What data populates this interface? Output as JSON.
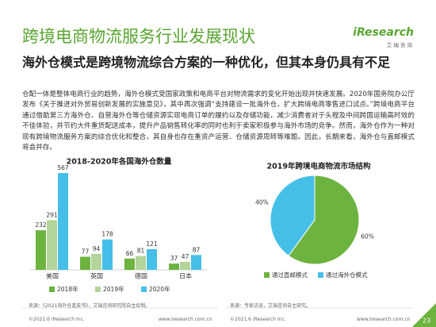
{
  "header": {
    "title": "跨境电商物流服务行业发展现状",
    "logo": "iResearch",
    "logo_sub": "艾 瑞 咨 询"
  },
  "subtitle": "海外仓模式是跨境物流综合方案的一种优化，但其本身仍具有不足",
  "body": "仓配一体是整体电商行业的趋势，海外仓模式受国家政策和电商平台对物流需求的变化开始出现并快速发展。2020年国务院办公厅发布《关于推进对外贸易创新发展的实施意见》，其中再次强调“支持建设一批海外仓，扩大跨境电商零售进口试点。”跨境电商平台通过借助第三方海外仓、自营海外仓等仓储资源实现电商订单的履约以及存储功能，减少消费者对于头程及中间跨国运输高时效的不佳体验，并节约大件重货配送成本，提升产品销售转化率的同时也利于卖家积极参与海外市场的竞争。然而，海外仓作为一种对现有跨境物流服务方案的综合优化和整合，其自身也存在重资产运营、仓储资源周转等难题。因此，长期来看，海外仓与直邮模式将会并存。",
  "chart_data": [
    {
      "type": "bar",
      "title": "2018-2020年各国海外仓数量",
      "categories": [
        "美国",
        "英国",
        "德国",
        "日本"
      ],
      "series": [
        {
          "name": "2018年",
          "color": "#6db33f",
          "values": [
            232,
            77,
            66,
            37
          ]
        },
        {
          "name": "2019年",
          "color": "#b3d49a",
          "values": [
            291,
            94,
            81,
            47
          ]
        },
        {
          "name": "2020年",
          "color": "#45bfe8",
          "values": [
            567,
            178,
            121,
            87
          ]
        }
      ]
    },
    {
      "type": "pie",
      "title": "2019年跨境电商物流市场结构",
      "categories": [
        "通过直邮模式",
        "通过海外仓模式"
      ],
      "values": [
        60,
        40
      ],
      "value_labels": [
        "60%",
        "40%"
      ],
      "colors": [
        "#6db33f",
        "#45bfe8"
      ]
    }
  ],
  "sources": [
    "来源：《2021海外仓蓝皮书》，艾瑞咨询研究院自主绘制。",
    "来源：专家访谈，艾瑞咨询自主研究。"
  ],
  "footer": {
    "copyright": "©2021.6 iResearch Inc.",
    "website": "www.iresearch.com.cn",
    "page": "23"
  }
}
